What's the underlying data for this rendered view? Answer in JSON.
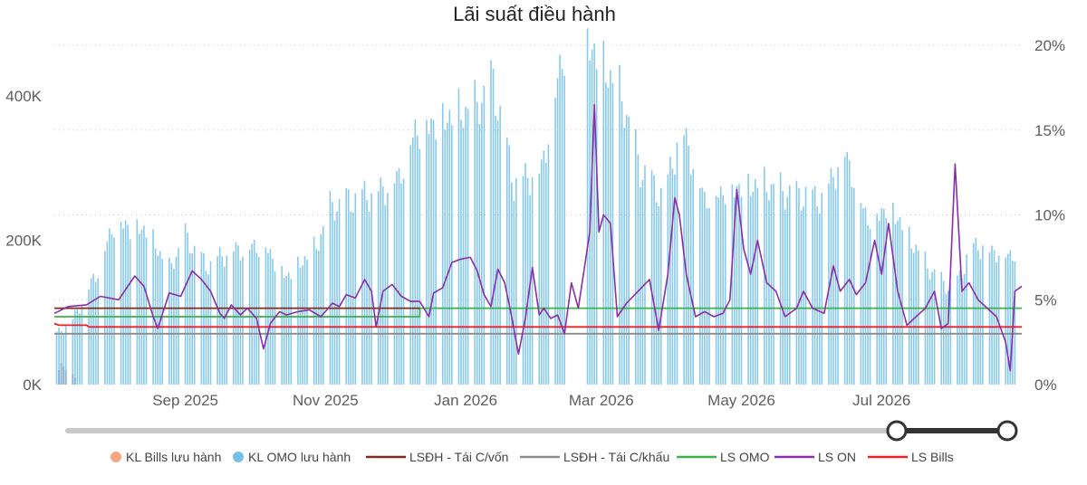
{
  "chart_data": {
    "type": "bar+line",
    "title": "Lãi suất điều hành",
    "x_range": [
      "2025-07-06",
      "2026-08-31"
    ],
    "x_ticks": [
      {
        "date": "2025-09-01",
        "label": "Sep 2025"
      },
      {
        "date": "2025-11-01",
        "label": "Nov 2025"
      },
      {
        "date": "2026-01-01",
        "label": "Jan 2026"
      },
      {
        "date": "2026-03-01",
        "label": "Mar 2026"
      },
      {
        "date": "2026-05-01",
        "label": "May 2026"
      },
      {
        "date": "2026-07-01",
        "label": "Jul 2026"
      }
    ],
    "y_left": {
      "min": 0,
      "max": 470000,
      "ticks": [
        {
          "value": 0,
          "label": "0K"
        },
        {
          "value": 200000,
          "label": "200K"
        },
        {
          "value": 400000,
          "label": "400K"
        }
      ]
    },
    "y_right": {
      "min": 0,
      "max": 20,
      "ticks": [
        {
          "value": 0,
          "label": "0%"
        },
        {
          "value": 5,
          "label": "5%"
        },
        {
          "value": 10,
          "label": "10%"
        },
        {
          "value": 15,
          "label": "15%"
        },
        {
          "value": 20,
          "label": "20%"
        }
      ]
    },
    "grid": true,
    "legend_position": "bottom",
    "bar_series": [
      {
        "name": "KL Bills lưu hành",
        "color": "#f4a582",
        "points": [
          [
            "2025-07-08",
            20000
          ],
          [
            "2025-07-09",
            30000
          ],
          [
            "2025-07-10",
            25000
          ],
          [
            "2025-07-11",
            20000
          ],
          [
            "2025-07-14",
            15000
          ],
          [
            "2025-07-15",
            10000
          ]
        ]
      },
      {
        "name": "KL OMO lưu hành",
        "color": "#74c0ea",
        "anchors": [
          [
            "2025-07-07",
            70000
          ],
          [
            "2025-07-14",
            90000
          ],
          [
            "2025-07-25",
            160000
          ],
          [
            "2025-08-01",
            225000
          ],
          [
            "2025-08-15",
            215000
          ],
          [
            "2025-08-25",
            160000
          ],
          [
            "2025-09-01",
            205000
          ],
          [
            "2025-09-10",
            165000
          ],
          [
            "2025-09-20",
            185000
          ],
          [
            "2025-10-05",
            195000
          ],
          [
            "2025-10-15",
            150000
          ],
          [
            "2025-10-28",
            190000
          ],
          [
            "2025-11-03",
            245000
          ],
          [
            "2025-11-15",
            260000
          ],
          [
            "2025-11-25",
            270000
          ],
          [
            "2025-12-03",
            290000
          ],
          [
            "2025-12-10",
            355000
          ],
          [
            "2025-12-22",
            370000
          ],
          [
            "2026-01-05",
            385000
          ],
          [
            "2026-01-13",
            420000
          ],
          [
            "2026-01-22",
            280000
          ],
          [
            "2026-02-03",
            300000
          ],
          [
            "2026-02-12",
            460000
          ],
          [
            "2026-02-18",
            490000
          ],
          [
            "2026-02-24",
            475000
          ],
          [
            "2026-03-02",
            445000
          ],
          [
            "2026-03-10",
            400000
          ],
          [
            "2026-03-18",
            300000
          ],
          [
            "2026-03-28",
            260000
          ],
          [
            "2026-04-05",
            360000
          ],
          [
            "2026-04-15",
            260000
          ],
          [
            "2026-04-28",
            275000
          ],
          [
            "2026-05-10",
            280000
          ],
          [
            "2026-05-22",
            265000
          ],
          [
            "2026-06-05",
            260000
          ],
          [
            "2026-06-15",
            325000
          ],
          [
            "2026-06-25",
            230000
          ],
          [
            "2026-07-05",
            250000
          ],
          [
            "2026-07-12",
            210000
          ],
          [
            "2026-07-22",
            160000
          ],
          [
            "2026-08-01",
            130000
          ],
          [
            "2026-08-10",
            195000
          ],
          [
            "2026-08-20",
            185000
          ],
          [
            "2026-08-30",
            180000
          ]
        ],
        "gaps": [
          [
            "2026-02-14",
            "2026-02-22"
          ]
        ]
      }
    ],
    "line_series": [
      {
        "name": "LSĐH - Tái C/vốn",
        "color": "#7b2e1e",
        "points": [
          [
            "2025-07-06",
            4.5
          ],
          [
            "2025-12-12",
            4.5
          ]
        ]
      },
      {
        "name": "LSĐH - Tái C/khấu",
        "color": "#8c8c8c",
        "points": [
          [
            "2025-07-06",
            3.0
          ],
          [
            "2026-08-31",
            3.0
          ]
        ]
      },
      {
        "name": "LS OMO",
        "color": "#3cb04a",
        "points": [
          [
            "2025-07-06",
            4.0
          ],
          [
            "2025-12-12",
            4.0
          ],
          [
            "2025-12-12",
            4.5
          ],
          [
            "2026-08-31",
            4.5
          ]
        ]
      },
      {
        "name": "LS ON",
        "color": "#8a2ea8",
        "points": [
          [
            "2025-07-06",
            4.2
          ],
          [
            "2025-07-12",
            4.6
          ],
          [
            "2025-07-20",
            4.7
          ],
          [
            "2025-07-26",
            5.2
          ],
          [
            "2025-08-03",
            5.0
          ],
          [
            "2025-08-10",
            6.4
          ],
          [
            "2025-08-14",
            5.8
          ],
          [
            "2025-08-18",
            4.0
          ],
          [
            "2025-08-20",
            3.3
          ],
          [
            "2025-08-25",
            5.4
          ],
          [
            "2025-08-30",
            5.2
          ],
          [
            "2025-09-04",
            6.7
          ],
          [
            "2025-09-08",
            6.2
          ],
          [
            "2025-09-12",
            5.5
          ],
          [
            "2025-09-16",
            4.2
          ],
          [
            "2025-09-18",
            3.9
          ],
          [
            "2025-09-21",
            4.7
          ],
          [
            "2025-09-25",
            4.1
          ],
          [
            "2025-09-28",
            4.5
          ],
          [
            "2025-10-02",
            3.9
          ],
          [
            "2025-10-05",
            2.1
          ],
          [
            "2025-10-08",
            3.6
          ],
          [
            "2025-10-12",
            4.3
          ],
          [
            "2025-10-15",
            4.1
          ],
          [
            "2025-10-20",
            4.3
          ],
          [
            "2025-10-25",
            4.4
          ],
          [
            "2025-10-30",
            4.0
          ],
          [
            "2025-11-04",
            4.8
          ],
          [
            "2025-11-07",
            4.6
          ],
          [
            "2025-11-10",
            5.3
          ],
          [
            "2025-11-14",
            5.1
          ],
          [
            "2025-11-18",
            6.2
          ],
          [
            "2025-11-21",
            5.5
          ],
          [
            "2025-11-23",
            3.4
          ],
          [
            "2025-11-26",
            5.5
          ],
          [
            "2025-11-30",
            5.9
          ],
          [
            "2025-12-04",
            5.2
          ],
          [
            "2025-12-08",
            4.9
          ],
          [
            "2025-12-12",
            4.9
          ],
          [
            "2025-12-16",
            4.0
          ],
          [
            "2025-12-18",
            5.4
          ],
          [
            "2025-12-22",
            5.7
          ],
          [
            "2025-12-26",
            7.2
          ],
          [
            "2025-12-30",
            7.4
          ],
          [
            "2026-01-03",
            7.5
          ],
          [
            "2026-01-06",
            6.7
          ],
          [
            "2026-01-09",
            5.3
          ],
          [
            "2026-01-12",
            4.6
          ],
          [
            "2026-01-15",
            6.8
          ],
          [
            "2026-01-18",
            6.0
          ],
          [
            "2026-01-21",
            4.0
          ],
          [
            "2026-01-24",
            1.8
          ],
          [
            "2026-01-27",
            3.9
          ],
          [
            "2026-01-30",
            6.9
          ],
          [
            "2026-02-02",
            4.1
          ],
          [
            "2026-02-04",
            4.5
          ],
          [
            "2026-02-07",
            3.9
          ],
          [
            "2026-02-10",
            4.1
          ],
          [
            "2026-02-13",
            3.0
          ],
          [
            "2026-02-16",
            6.0
          ],
          [
            "2026-02-19",
            4.5
          ],
          [
            "2026-02-21",
            6.3
          ],
          [
            "2026-02-24",
            9.0
          ],
          [
            "2026-02-26",
            16.5
          ],
          [
            "2026-02-28",
            9.0
          ],
          [
            "2026-03-02",
            10.0
          ],
          [
            "2026-03-05",
            9.5
          ],
          [
            "2026-03-08",
            4.0
          ],
          [
            "2026-03-12",
            4.8
          ],
          [
            "2026-03-17",
            5.5
          ],
          [
            "2026-03-22",
            6.2
          ],
          [
            "2026-03-26",
            3.2
          ],
          [
            "2026-03-30",
            6.5
          ],
          [
            "2026-04-02",
            11.0
          ],
          [
            "2026-04-04",
            10.0
          ],
          [
            "2026-04-07",
            6.5
          ],
          [
            "2026-04-11",
            4.0
          ],
          [
            "2026-04-15",
            4.3
          ],
          [
            "2026-04-19",
            4.0
          ],
          [
            "2026-04-23",
            4.2
          ],
          [
            "2026-04-26",
            5.0
          ],
          [
            "2026-04-29",
            11.5
          ],
          [
            "2026-05-02",
            8.0
          ],
          [
            "2026-05-05",
            6.5
          ],
          [
            "2026-05-08",
            8.5
          ],
          [
            "2026-05-12",
            6.0
          ],
          [
            "2026-05-16",
            5.5
          ],
          [
            "2026-05-20",
            4.0
          ],
          [
            "2026-05-25",
            4.5
          ],
          [
            "2026-05-28",
            5.5
          ],
          [
            "2026-06-01",
            4.5
          ],
          [
            "2026-06-06",
            4.2
          ],
          [
            "2026-06-10",
            7.0
          ],
          [
            "2026-06-13",
            5.5
          ],
          [
            "2026-06-17",
            6.2
          ],
          [
            "2026-06-20",
            5.3
          ],
          [
            "2026-06-24",
            6.0
          ],
          [
            "2026-06-28",
            8.5
          ],
          [
            "2026-07-01",
            6.5
          ],
          [
            "2026-07-04",
            9.5
          ],
          [
            "2026-07-08",
            5.5
          ],
          [
            "2026-07-12",
            3.5
          ],
          [
            "2026-07-16",
            4.0
          ],
          [
            "2026-07-20",
            4.5
          ],
          [
            "2026-07-24",
            5.5
          ],
          [
            "2026-07-27",
            3.3
          ],
          [
            "2026-07-30",
            3.6
          ],
          [
            "2026-08-02",
            13.0
          ],
          [
            "2026-08-05",
            5.5
          ],
          [
            "2026-08-08",
            6.0
          ],
          [
            "2026-08-12",
            5.0
          ],
          [
            "2026-08-16",
            4.5
          ],
          [
            "2026-08-20",
            4.0
          ],
          [
            "2026-08-24",
            2.5
          ],
          [
            "2026-08-26",
            0.8
          ],
          [
            "2026-08-28",
            5.5
          ],
          [
            "2026-08-31",
            5.8
          ]
        ]
      },
      {
        "name": "LS Bills",
        "color": "#e8212b",
        "points": [
          [
            "2025-07-06",
            3.6
          ],
          [
            "2025-07-08",
            3.5
          ],
          [
            "2025-07-20",
            3.5
          ],
          [
            "2025-07-21",
            3.4
          ],
          [
            "2026-08-31",
            3.4
          ]
        ]
      }
    ],
    "legend": [
      {
        "label": "KL Bills lưu hành",
        "color": "#f4a582",
        "marker": "circle"
      },
      {
        "label": "KL OMO lưu hành",
        "color": "#74c0ea",
        "marker": "circle"
      },
      {
        "label": "LSĐH - Tái C/vốn",
        "color": "#7b2e1e",
        "marker": "line"
      },
      {
        "label": "LSĐH - Tái C/khấu",
        "color": "#8c8c8c",
        "marker": "line"
      },
      {
        "label": "LS OMO",
        "color": "#3cb04a",
        "marker": "line"
      },
      {
        "label": "LS ON",
        "color": "#8a2ea8",
        "marker": "line"
      },
      {
        "label": "LS Bills",
        "color": "#e8212b",
        "marker": "line"
      }
    ],
    "range_slider": {
      "start_fraction": 0.9,
      "end_fraction": 1.0
    }
  }
}
